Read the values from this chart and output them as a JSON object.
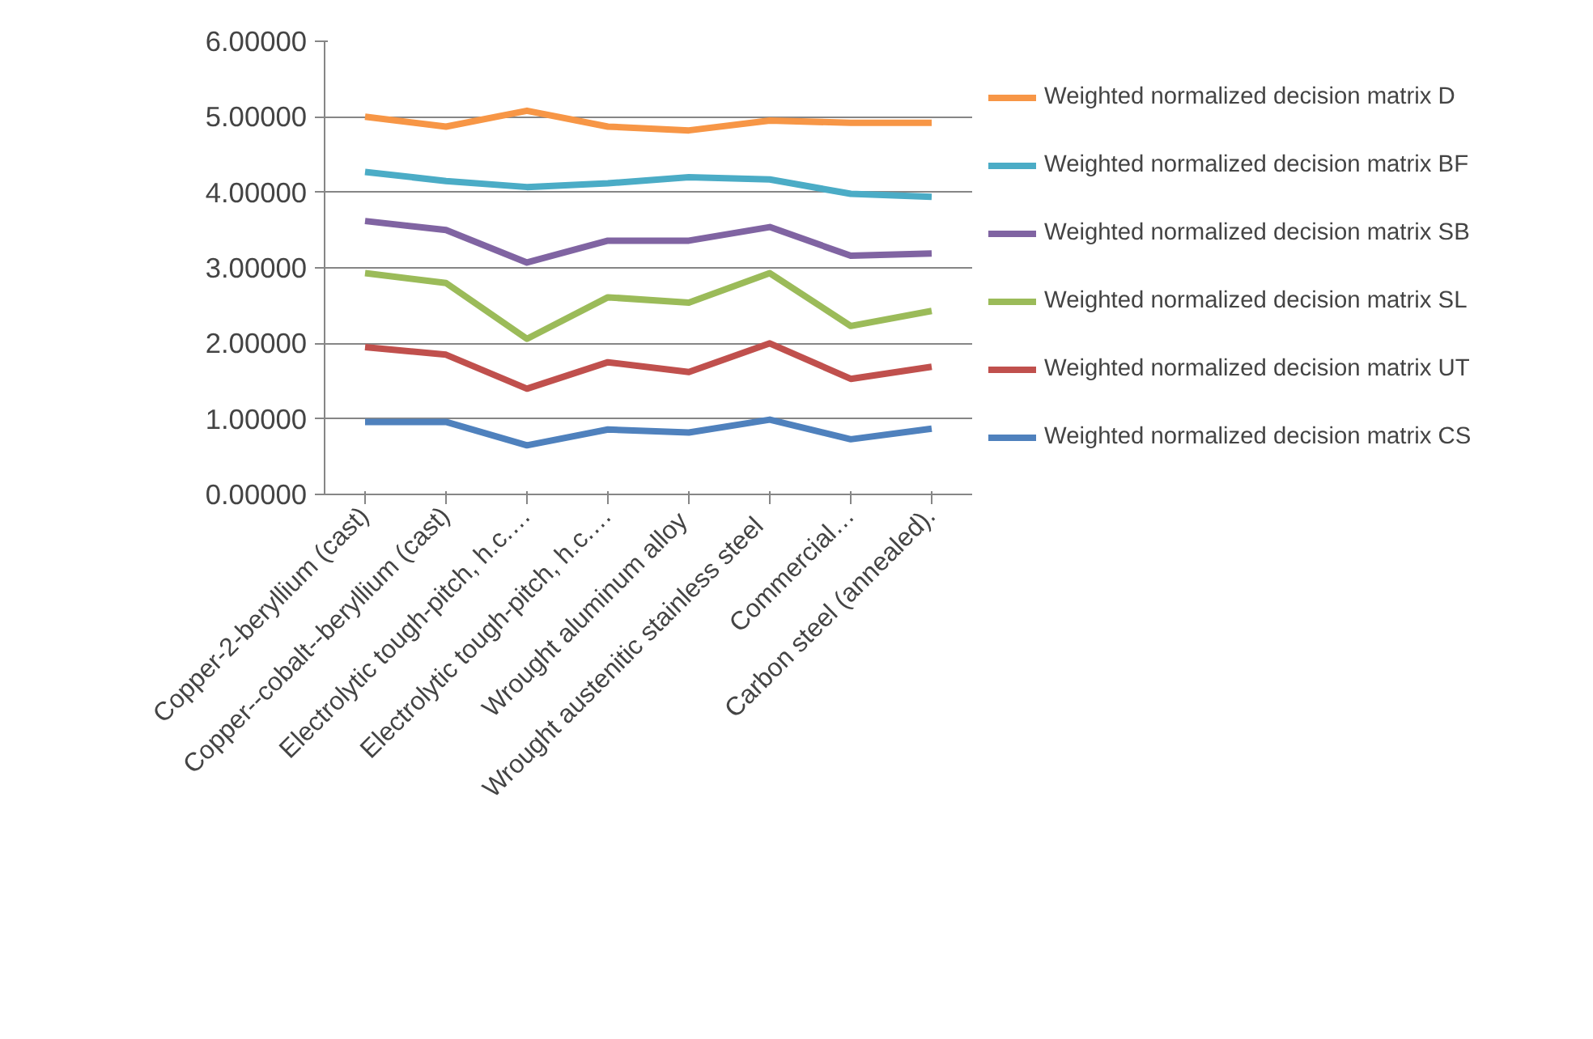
{
  "chart_data": {
    "type": "line",
    "categories": [
      "Copper-2-beryllium (cast)",
      "Copper--cobalt--beryllium (cast)",
      "Electrolytic tough-pitch, h.c.…",
      "Electrolytic tough-pitch, h.c.…",
      "Wrought aluminum  alloy",
      "Wrought austenitic  stainless  steel",
      "Commercial…",
      "Carbon steel (annealed)."
    ],
    "series": [
      {
        "name": "Weighted normalized decision matrix D",
        "color": "#f79646",
        "values": [
          5.0,
          4.87,
          5.08,
          4.87,
          4.82,
          4.95,
          4.92,
          4.92
        ]
      },
      {
        "name": "Weighted normalized decision matrix BF",
        "color": "#4bacc6",
        "values": [
          4.27,
          4.15,
          4.07,
          4.12,
          4.2,
          4.17,
          3.98,
          3.94
        ]
      },
      {
        "name": "Weighted normalized decision matrix SB",
        "color": "#8064a2",
        "values": [
          3.62,
          3.5,
          3.07,
          3.36,
          3.36,
          3.54,
          3.16,
          3.19
        ]
      },
      {
        "name": "Weighted normalized decision matrix SL",
        "color": "#9bbb59",
        "values": [
          2.93,
          2.8,
          2.06,
          2.61,
          2.54,
          2.93,
          2.23,
          2.43
        ]
      },
      {
        "name": "Weighted normalized decision matrix UT",
        "color": "#c0504d",
        "values": [
          1.95,
          1.85,
          1.4,
          1.75,
          1.62,
          2.0,
          1.53,
          1.69
        ]
      },
      {
        "name": "Weighted normalized decision matrix CS",
        "color": "#4f81bd",
        "values": [
          0.96,
          0.96,
          0.65,
          0.86,
          0.82,
          0.99,
          0.73,
          0.87
        ]
      }
    ],
    "ylim": [
      0,
      6
    ],
    "yticks": [
      {
        "value": 0,
        "label": "0.00000"
      },
      {
        "value": 1,
        "label": "1.00000"
      },
      {
        "value": 2,
        "label": "2.00000"
      },
      {
        "value": 3,
        "label": "3.00000"
      },
      {
        "value": 4,
        "label": "4.00000"
      },
      {
        "value": 5,
        "label": "5.00000"
      },
      {
        "value": 6,
        "label": "6.00000"
      }
    ],
    "grid": "y",
    "legend": "right",
    "marker": "none",
    "line_style": "solid"
  }
}
